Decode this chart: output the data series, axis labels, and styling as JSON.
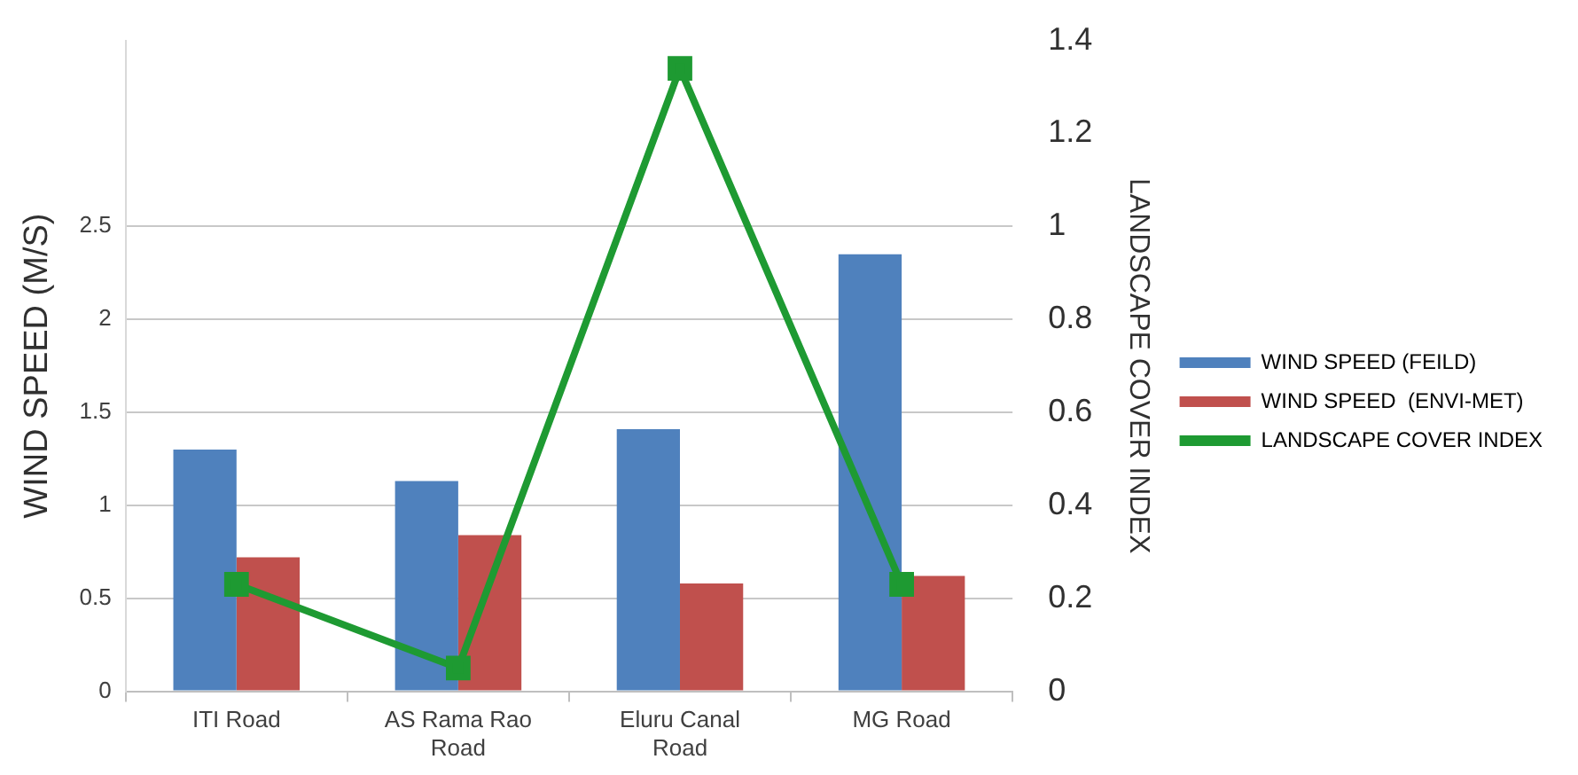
{
  "chart_data": {
    "type": "bar",
    "ylabel": "WIND SPEED (M/S)",
    "y2label": "LANDSCAPE COVER INDEX",
    "categories": [
      "ITI Road",
      "AS Rama Rao Road",
      "Eluru Canal Road",
      "MG Road"
    ],
    "series": [
      {
        "name": "WIND SPEED (FEILD)",
        "color": "#4f81bd",
        "values": [
          1.3,
          1.13,
          1.41,
          2.35
        ]
      },
      {
        "name": "WIND SPEED  (ENVI-MET)",
        "color": "#c0504d",
        "values": [
          0.72,
          0.84,
          0.58,
          0.62
        ]
      },
      {
        "name": "LANDSCAPE COVER INDEX",
        "type": "line",
        "axis": "y2",
        "color": "#1e9a32",
        "marker": "square",
        "values": [
          0.23,
          0.05,
          1.34,
          0.23
        ]
      }
    ],
    "ylim": [
      0,
      3.5
    ],
    "yticks": [
      0,
      0.5,
      1,
      1.5,
      2,
      2.5
    ],
    "y2lim": [
      0,
      1.4
    ],
    "y2ticks": [
      0,
      0.2,
      0.4,
      0.6,
      0.8,
      1,
      1.2,
      1.4
    ],
    "grid": "y",
    "legend": "right"
  }
}
